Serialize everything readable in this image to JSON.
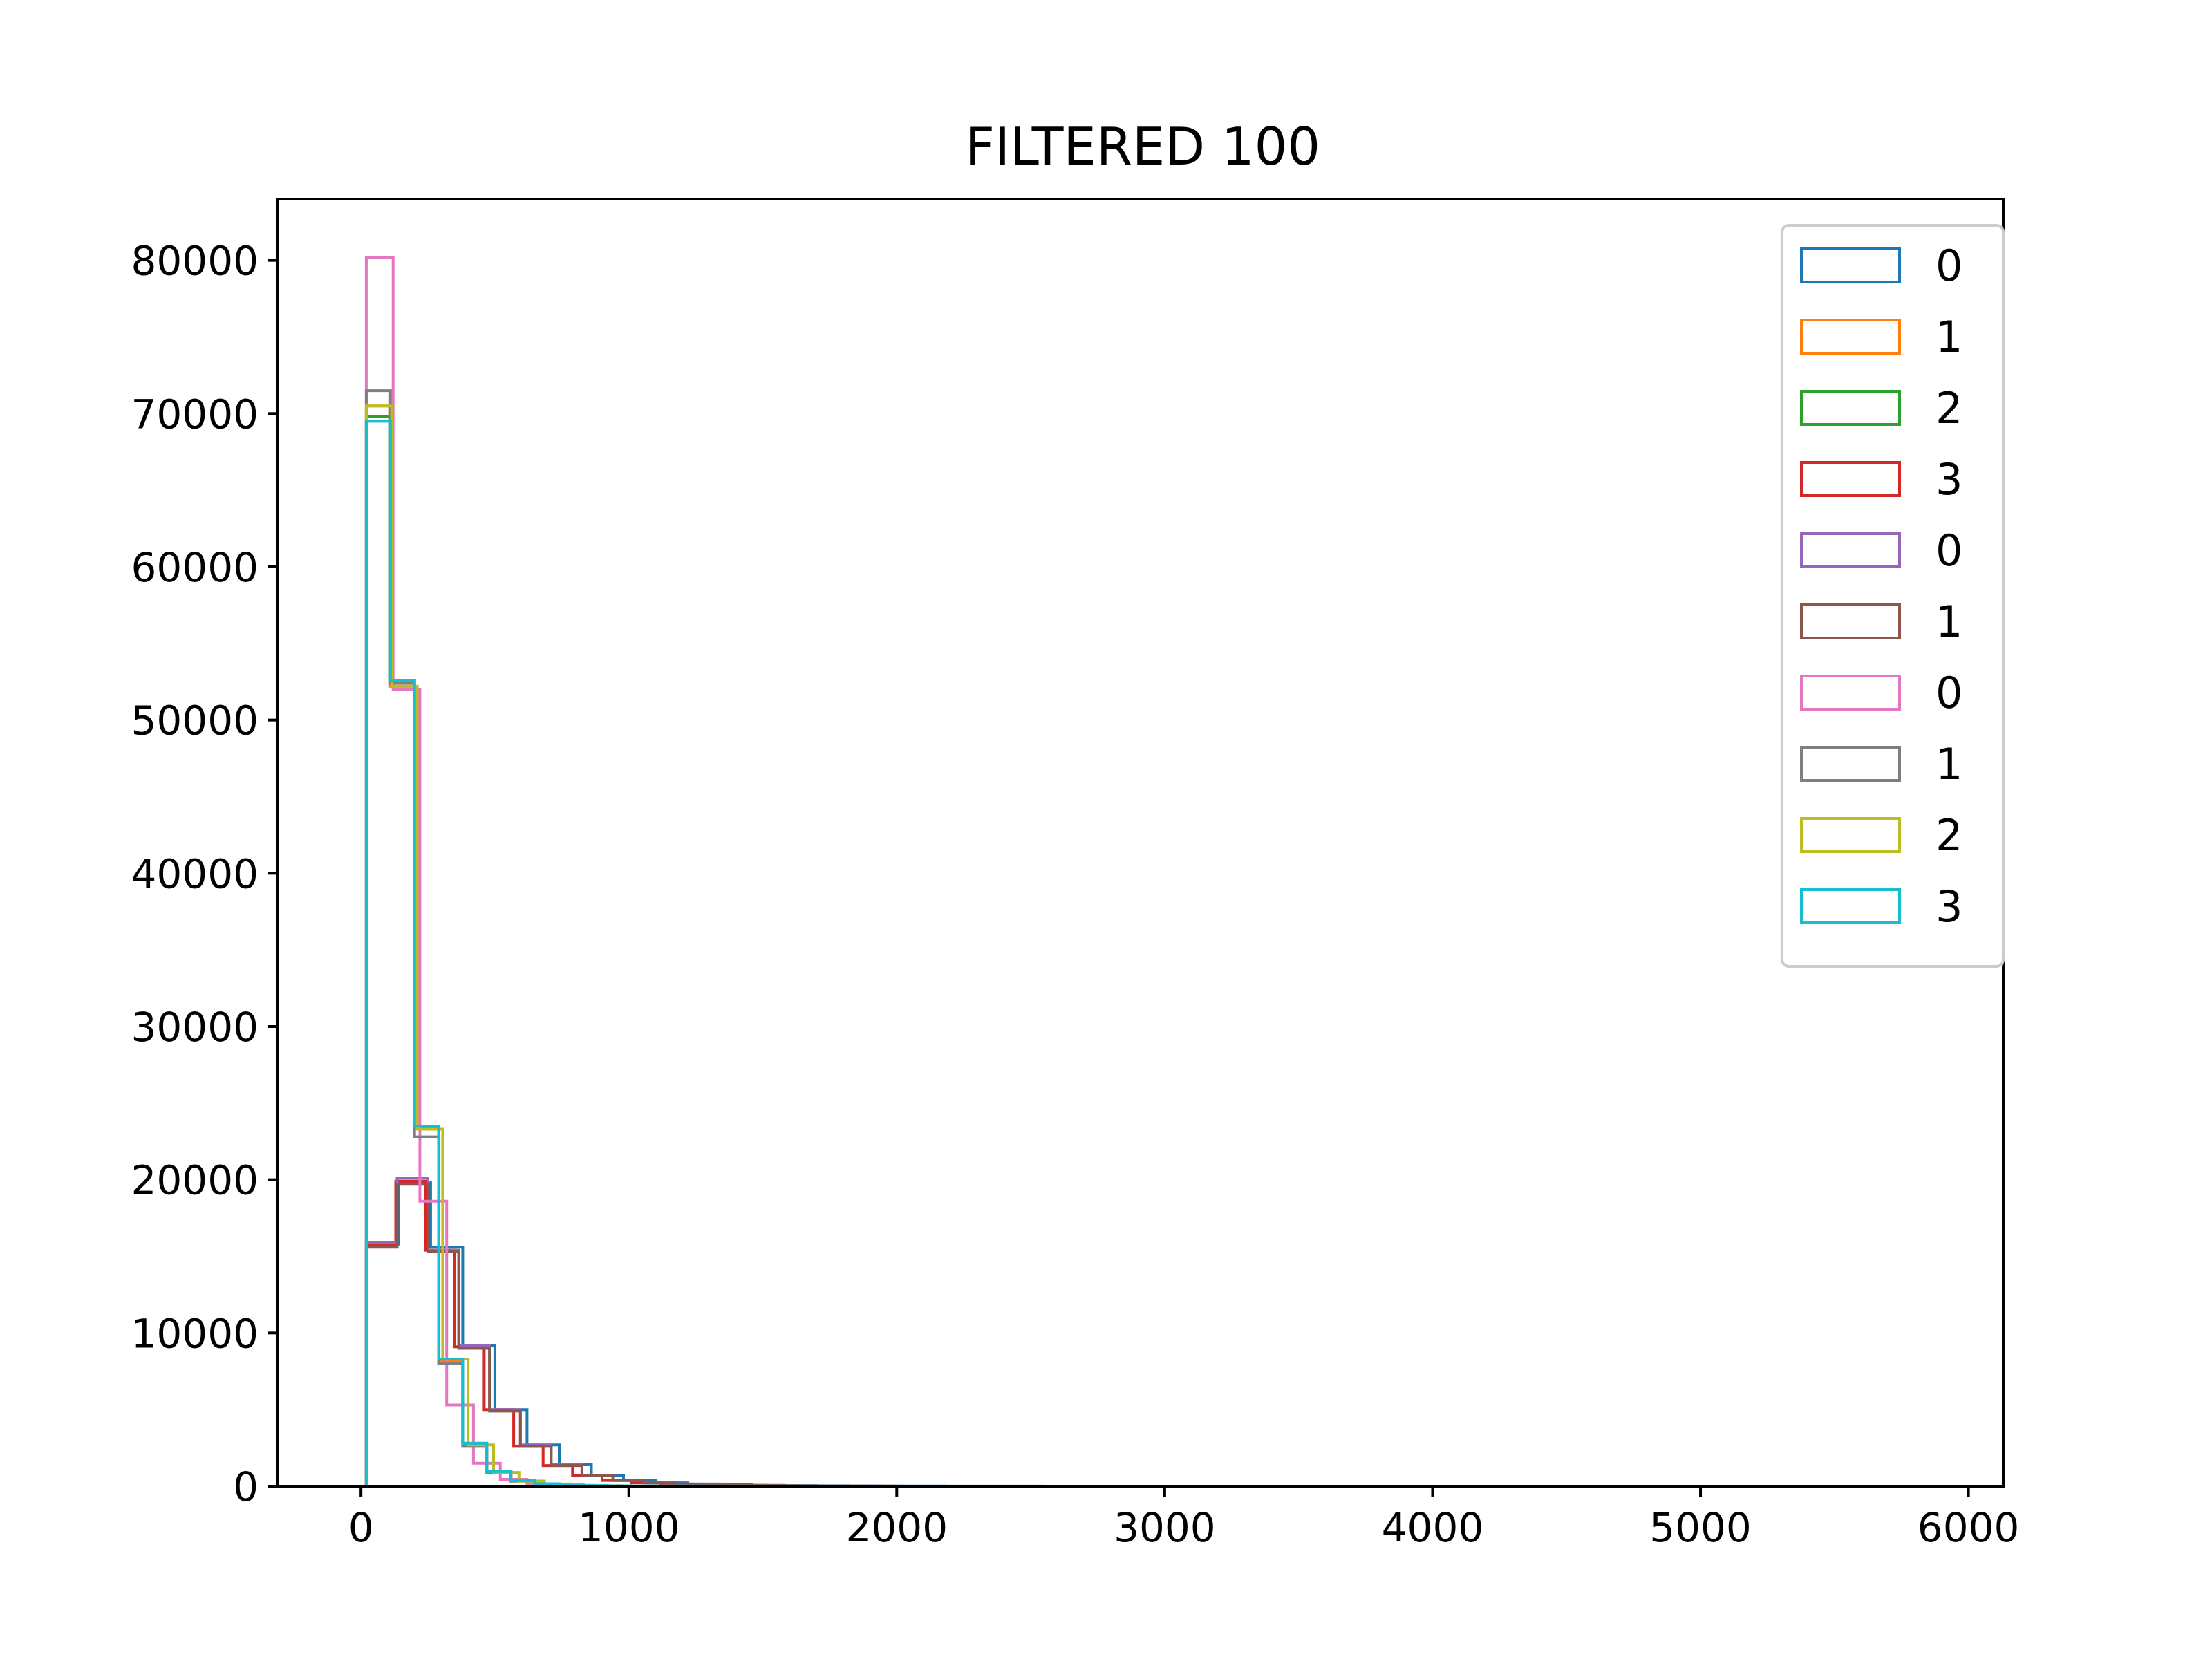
{
  "chart_data": {
    "type": "histogram",
    "title": "FILTERED 100",
    "xlabel": "",
    "ylabel": "",
    "xlim": [
      -310,
      6130
    ],
    "ylim": [
      0,
      84000
    ],
    "xticks": [
      0,
      1000,
      2000,
      3000,
      4000,
      5000,
      6000
    ],
    "xtick_labels": [
      "0",
      "1000",
      "2000",
      "3000",
      "4000",
      "5000",
      "6000"
    ],
    "yticks": [
      0,
      10000,
      20000,
      30000,
      40000,
      50000,
      60000,
      70000,
      80000
    ],
    "ytick_labels": [
      "0",
      "10000",
      "20000",
      "30000",
      "40000",
      "50000",
      "60000",
      "70000",
      "80000"
    ],
    "grid": false,
    "legend_position": "top-right",
    "histtype": "step",
    "series": [
      {
        "name": "0",
        "color": "#1f77b4",
        "bin_edges": [
          20,
          140,
          260,
          380,
          500,
          620,
          740,
          860,
          980,
          1100,
          1220,
          1340,
          1460,
          1580,
          1700,
          1820,
          1940,
          2060,
          2180,
          2300,
          2420,
          2540
        ],
        "counts": [
          15800,
          19800,
          15600,
          9200,
          5000,
          2700,
          1400,
          700,
          380,
          220,
          140,
          90,
          60,
          40,
          25,
          18,
          12,
          8,
          6,
          4,
          3
        ]
      },
      {
        "name": "1",
        "color": "#ff7f0e",
        "bin_edges": [
          20,
          110,
          200,
          290,
          380,
          470,
          560,
          650,
          740,
          830,
          920,
          1010
        ],
        "counts": [
          70500,
          52200,
          23300,
          8200,
          2700,
          900,
          350,
          150,
          70,
          35,
          15
        ]
      },
      {
        "name": "2",
        "color": "#2ca02c",
        "bin_edges": [
          20,
          110,
          200,
          290,
          380,
          470,
          560,
          650,
          740,
          830,
          920,
          1010
        ],
        "counts": [
          69800,
          52600,
          23400,
          8300,
          2800,
          950,
          360,
          150,
          70,
          35,
          15
        ]
      },
      {
        "name": "3",
        "color": "#d62728",
        "bin_edges": [
          20,
          130,
          240,
          350,
          460,
          570,
          680,
          790,
          900,
          1010,
          1120,
          1230,
          1340,
          1450,
          1560,
          1670,
          1780,
          1890,
          2000
        ],
        "counts": [
          15700,
          19900,
          15400,
          9100,
          5000,
          2600,
          1350,
          700,
          380,
          220,
          140,
          90,
          55,
          35,
          22,
          14,
          9,
          6
        ]
      },
      {
        "name": "0",
        "color": "#9467bd",
        "bin_edges": [
          20,
          135,
          250,
          365,
          480,
          595,
          710,
          825,
          940,
          1055,
          1170,
          1285,
          1400,
          1515,
          1630,
          1745,
          1860
        ],
        "counts": [
          15900,
          20100,
          15400,
          9200,
          5000,
          2700,
          1400,
          700,
          380,
          220,
          140,
          90,
          55,
          35,
          22,
          14
        ]
      },
      {
        "name": "1",
        "color": "#8c564b",
        "bin_edges": [
          20,
          135,
          250,
          365,
          480,
          595,
          710,
          825,
          940,
          1055,
          1170,
          1285,
          1400,
          1515,
          1630,
          1745,
          1860
        ],
        "counts": [
          15600,
          19700,
          15300,
          9000,
          4900,
          2600,
          1350,
          700,
          370,
          210,
          130,
          85,
          50,
          32,
          20,
          12
        ]
      },
      {
        "name": "0",
        "color": "#e377c2",
        "bin_edges": [
          20,
          120,
          220,
          320,
          420,
          520,
          620,
          720,
          820,
          920
        ],
        "counts": [
          80200,
          52000,
          18600,
          5300,
          1500,
          450,
          150,
          60,
          25
        ]
      },
      {
        "name": "1",
        "color": "#7f7f7f",
        "bin_edges": [
          20,
          110,
          200,
          290,
          380,
          470,
          560,
          650,
          740,
          830,
          920
        ],
        "counts": [
          71500,
          52400,
          22800,
          8000,
          2600,
          900,
          330,
          140,
          60,
          30
        ]
      },
      {
        "name": "2",
        "color": "#bcbd22",
        "bin_edges": [
          20,
          115,
          210,
          305,
          400,
          495,
          590,
          685,
          780,
          875,
          970
        ],
        "counts": [
          70500,
          52200,
          23300,
          8300,
          2700,
          900,
          340,
          140,
          60,
          30
        ]
      },
      {
        "name": "3",
        "color": "#17becf",
        "bin_edges": [
          20,
          110,
          200,
          290,
          380,
          470,
          560,
          650,
          740,
          830,
          920,
          1010,
          1100,
          1190,
          1280,
          1370,
          1460,
          1550,
          1640,
          1730,
          1820,
          1910,
          2000,
          2090,
          2180,
          2270,
          2360,
          2450,
          2540
        ],
        "counts": [
          69500,
          52600,
          23500,
          8300,
          2800,
          950,
          370,
          160,
          75,
          40,
          22,
          14,
          10,
          8,
          6,
          5,
          4,
          4,
          3,
          3,
          3,
          2,
          2,
          2,
          2,
          2,
          2,
          2
        ]
      }
    ]
  }
}
